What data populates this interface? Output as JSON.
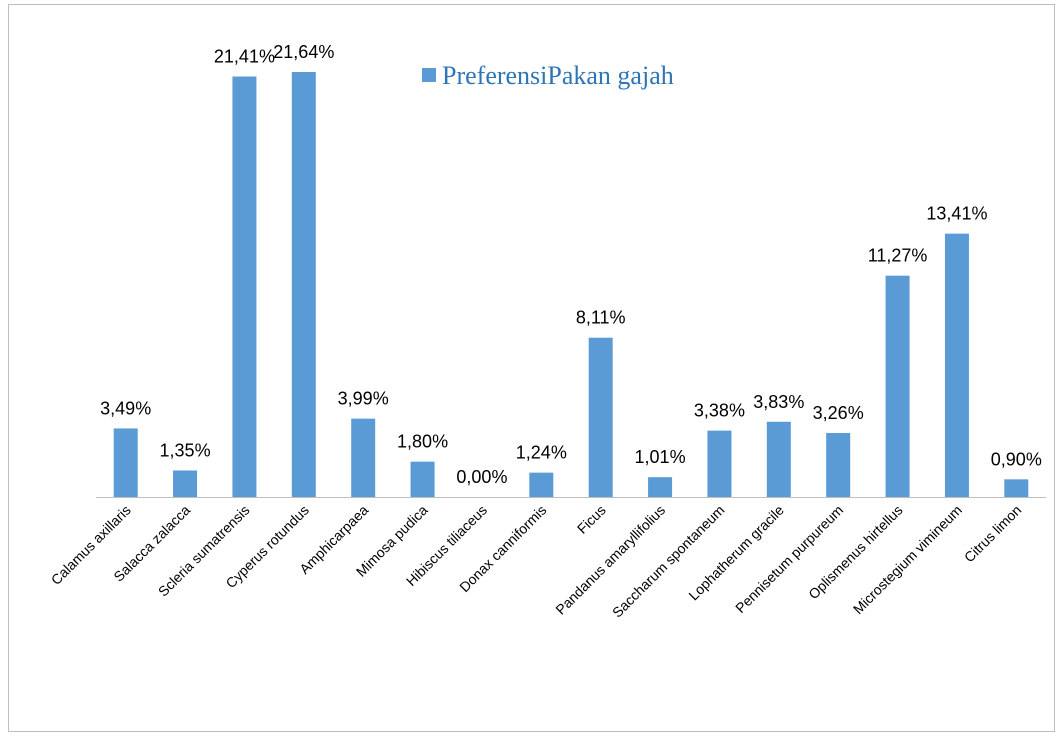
{
  "chart_data": {
    "type": "bar",
    "categories": [
      "Calamus axillaris",
      "Salacca zalacca",
      "Scleria sumatrensis",
      "Cyperus rotundus",
      "Amphicarpaea",
      "Mimosa pudica",
      "Hibiscus tiliaceus",
      "Donax canniformis",
      "Ficus",
      "Pandanus amaryllifolius",
      "Saccharum spontaneum",
      "Lophatherum gracile",
      "Pennisetum purpureum",
      "Oplismenus hirtellus",
      "Microstegium vimineum",
      "Citrus limon"
    ],
    "series": [
      {
        "name": "PreferensiPakan gajah",
        "color": "#5b9bd5",
        "values": [
          3.49,
          1.35,
          21.41,
          21.64,
          3.99,
          1.8,
          0.0,
          1.24,
          8.11,
          1.01,
          3.38,
          3.83,
          3.26,
          11.27,
          13.41,
          0.9
        ],
        "value_labels": [
          "3,49%",
          "1,35%",
          "21,41%",
          "21,64%",
          "3,99%",
          "1,80%",
          "0,00%",
          "1,24%",
          "8,11%",
          "1,01%",
          "3,38%",
          "3,83%",
          "3,26%",
          "11,27%",
          "13,41%",
          "0,90%"
        ]
      }
    ]
  }
}
